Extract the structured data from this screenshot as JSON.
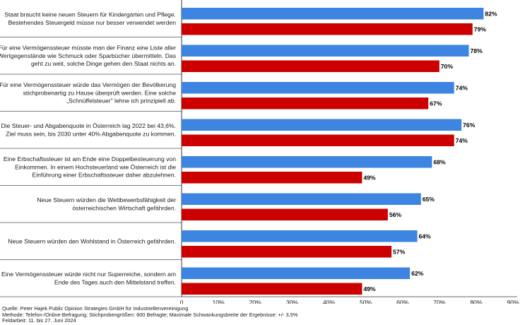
{
  "chart_data": {
    "type": "bar",
    "orientation": "horizontal",
    "categories": [
      [
        "Staat braucht keine neuen Steuern für Kindergarten und Pflege.",
        "Bestehendes Steuergeld müsse nur besser verwendet werden"
      ],
      [
        "Für eine Vermögenssteuer müsste man der Finanz eine Liste aller",
        "Wertgegenstände wie Schmuck oder Sparbücher übermitteln. Das",
        "geht zu weit, solche Dinge gehen den Staat nichts an."
      ],
      [
        "Für eine Vermögenssteuer würde das Vermögen der Bevölkerung",
        "stichprobenartig zu Hause überprüft werden. Eine solche",
        "„Schnüffelsteuer\" lehne ich prinzipiell ab."
      ],
      [
        "Die Steuer- und Abgabenquote in Österreich lag 2022 bei 43,6%.",
        "Ziel muss sein, bis 2030 unter 40% Abgabenquote zu kommen."
      ],
      [
        "Eine Erbschaftssteuer ist am Ende eine Doppelbesteuerung von",
        "Einkommen. In einem Hochsteuerland wie Österreich ist die",
        "Einführung einer Erbschaftssteuer daher abzulehnen."
      ],
      [
        "Neue Steuern würden die Wettbewerbsfähigkeit der",
        "österreichischen Wirtschaft gefährden."
      ],
      [
        "Neue Steuern würden den Wohlstand in Österreich gefährden."
      ],
      [
        "Eine Vermögenssteuer würde nicht nur Superreiche, sondern am",
        "Ende des Tages auch den Mittelstand treffen."
      ]
    ],
    "series": [
      {
        "values": [
          82,
          78,
          74,
          76,
          68,
          65,
          64,
          62
        ],
        "color": "#3d85e0"
      },
      {
        "values": [
          79,
          70,
          67,
          74,
          49,
          56,
          57,
          49
        ],
        "color": "#cc0000"
      }
    ],
    "value_labels": [
      [
        "82%",
        "78%",
        "74%",
        "76%",
        "68%",
        "65%",
        "64%",
        "62%"
      ],
      [
        "79%",
        "70%",
        "67%",
        "74%",
        "49%",
        "56%",
        "57%",
        "49%"
      ]
    ],
    "xlim": [
      0,
      90
    ],
    "xticks": [
      0,
      10,
      20,
      30,
      40,
      50,
      60,
      70,
      80,
      90
    ],
    "xtick_labels": [
      "0",
      "10%",
      "20%",
      "30%",
      "40%",
      "50%",
      "60%",
      "70%",
      "80%",
      "90%"
    ],
    "grid": false,
    "legend": "none"
  },
  "footer": {
    "source": "Quelle: Peter Hajek Public Opinion Strategies GmbH für Industriellenvereinigung",
    "method": "Methode: Telefon-/Online-Befragung; Stichprobengrößen: 800 Befragte; Maximale Schwankungsbreite der Ergebnisse: +/- 3,5%",
    "fieldwork": "Feldarbeit: 11. bis 27. Juni 2024"
  }
}
